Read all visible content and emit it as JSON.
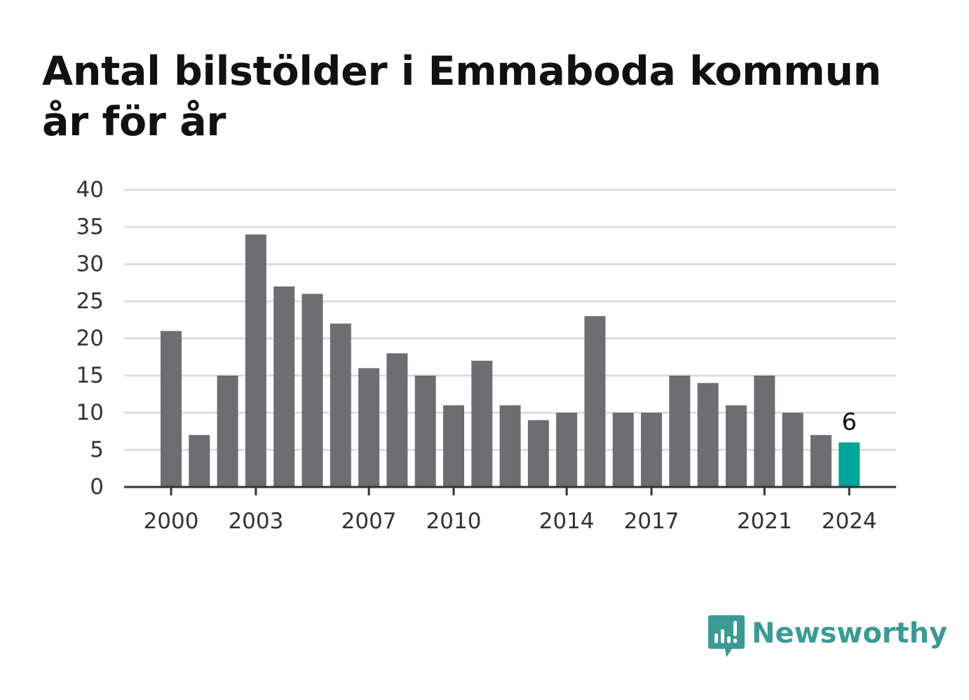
{
  "title": "Antal bilstölder i Emmaboda kommun år för år",
  "brand": {
    "name": "Newsworthy",
    "logo_icon": "newsworthy-logo-icon",
    "color": "#3c9a94"
  },
  "colors": {
    "bar": "#6e6d72",
    "highlight": "#00a59a",
    "grid": "#dcdcdc",
    "axis": "#333333"
  },
  "chart_data": {
    "type": "bar",
    "title": "Antal bilstölder i Emmaboda kommun år för år",
    "xlabel": "",
    "ylabel": "",
    "ylim": [
      0,
      40
    ],
    "yticks": [
      0,
      5,
      10,
      15,
      20,
      25,
      30,
      35,
      40
    ],
    "xtick_labels": [
      "2000",
      "2003",
      "2007",
      "2010",
      "2014",
      "2017",
      "2021",
      "2024"
    ],
    "grid": true,
    "legend": "none",
    "categories": [
      "2000",
      "2001",
      "2002",
      "2003",
      "2004",
      "2005",
      "2006",
      "2007",
      "2008",
      "2009",
      "2010",
      "2011",
      "2012",
      "2013",
      "2014",
      "2015",
      "2016",
      "2017",
      "2018",
      "2019",
      "2020",
      "2021",
      "2022",
      "2023",
      "2024"
    ],
    "values": [
      21,
      7,
      15,
      34,
      27,
      26,
      22,
      16,
      18,
      15,
      11,
      17,
      11,
      9,
      10,
      23,
      10,
      10,
      15,
      14,
      11,
      15,
      10,
      7,
      6
    ],
    "highlight": {
      "category": "2024",
      "label": "6"
    }
  }
}
